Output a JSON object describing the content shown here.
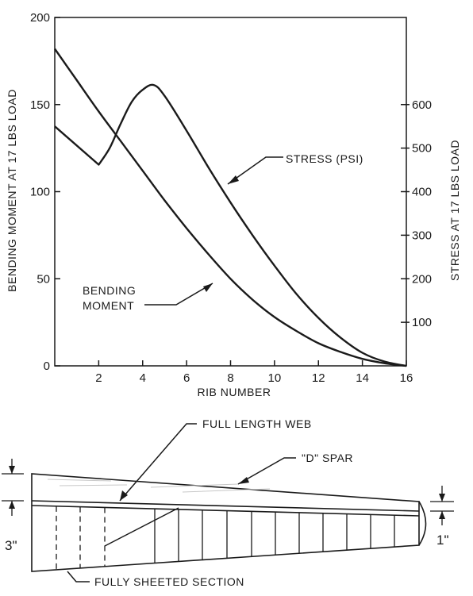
{
  "chart_data": {
    "type": "line",
    "xlabel": "RIB NUMBER",
    "ylabel_left": "BENDING MOMENT AT 17 LBS LOAD",
    "ylabel_right": "STRESS AT 17 LBS LOAD",
    "xlim": [
      0,
      16
    ],
    "ylim_left": [
      0,
      200
    ],
    "ylim_right": [
      0,
      800
    ],
    "x_ticks": [
      "2",
      "4",
      "6",
      "8",
      "10",
      "12",
      "14",
      "16"
    ],
    "left_ticks": [
      "0",
      "50",
      "100",
      "150",
      "200"
    ],
    "right_ticks": [
      "100",
      "200",
      "300",
      "400",
      "500",
      "600"
    ],
    "series": [
      {
        "name": "BENDING MOMENT",
        "axis": "left",
        "x": [
          0,
          1,
          2,
          3,
          4,
          5,
          6,
          7,
          8,
          9,
          10,
          11,
          12,
          13,
          14,
          15,
          16
        ],
        "y": [
          182,
          164,
          146,
          129,
          112,
          95,
          79,
          64,
          50,
          38,
          28,
          20,
          13,
          8,
          4,
          1.5,
          0
        ]
      },
      {
        "name": "STRESS (PSI)",
        "axis": "right",
        "x": [
          0,
          1,
          2,
          2.5,
          3,
          3.5,
          4,
          4.5,
          5,
          6,
          7,
          8,
          9,
          10,
          11,
          12,
          13,
          14,
          15,
          16
        ],
        "y": [
          550,
          510,
          462,
          500,
          556,
          606,
          634,
          645,
          620,
          540,
          455,
          375,
          300,
          230,
          165,
          110,
          65,
          30,
          10,
          0
        ]
      }
    ],
    "annotations": [
      "STRESS (PSI)",
      "BENDING",
      "MOMENT"
    ]
  },
  "diagram": {
    "labels": {
      "full_length_web": "FULL LENGTH WEB",
      "d_spar": "\"D\" SPAR",
      "fully_sheeted": "FULLY SHEETED SECTION",
      "root_chord": "3\"",
      "tip_chord": "1\""
    }
  }
}
